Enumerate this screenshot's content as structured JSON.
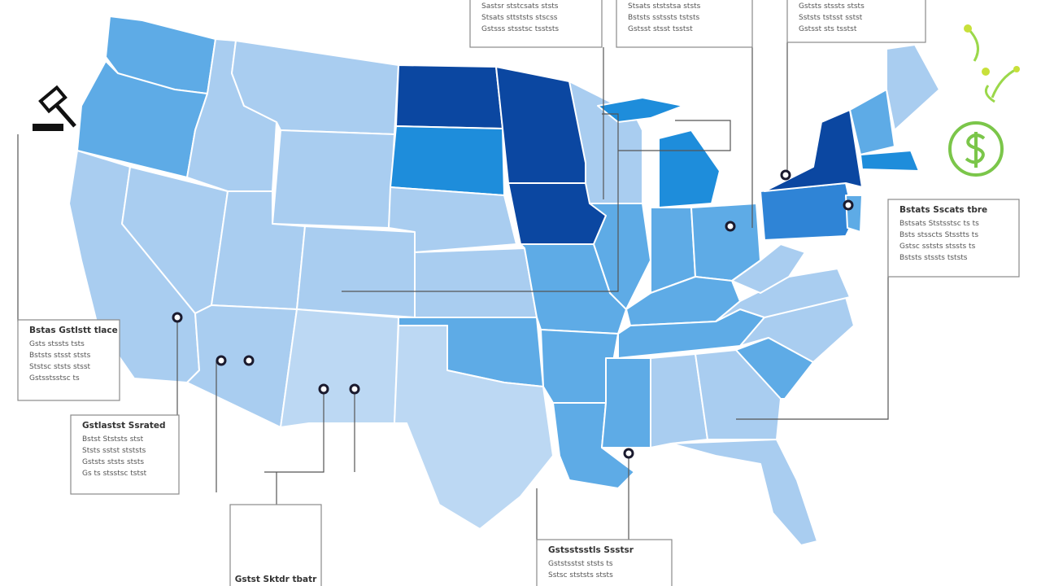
{
  "callouts": [
    {
      "lines": [
        "Sastsr ststcsats ststs",
        "Stsats sttststs stscss",
        "Gstsss stsstsc tsststs"
      ]
    },
    {
      "lines": [
        "Stsats stststsa ststs",
        "Bststs sstssts tststs",
        "Gstsst stsst tsstst"
      ]
    },
    {
      "lines": [
        "Gststs stssts ststs",
        "Sststs tstsst sstst",
        "Gstsst sts tsstst"
      ]
    },
    {
      "title": "Bstats Sscats tbre",
      "lines": [
        "Bstsats Ststsstsc ts ts",
        "Bsts stsscts Stsstts ts",
        "Gstsc sststs stssts ts",
        "Bststs stssts tststs"
      ]
    },
    {
      "title": "Bstas Gstlstt tlace",
      "lines": [
        "Gsts stssts tsts",
        "Bststs stsst ststs",
        "Ststsc ststs stsst",
        "Gstsstsstsc ts"
      ]
    },
    {
      "title": "Gstlastst Ssrated",
      "lines": [
        "Bstst Stststs stst",
        "Ststs sstst stststs",
        "Gststs ststs ststs",
        "Gs ts stsstsc tstst"
      ]
    },
    {
      "title": "Gstst Sktdr tbatr",
      "lines": []
    },
    {
      "title": "Gstsstsstls Ssstsr",
      "lines": [
        "Gststsstst ststs ts",
        "Sstsc stststs ststs"
      ]
    }
  ]
}
